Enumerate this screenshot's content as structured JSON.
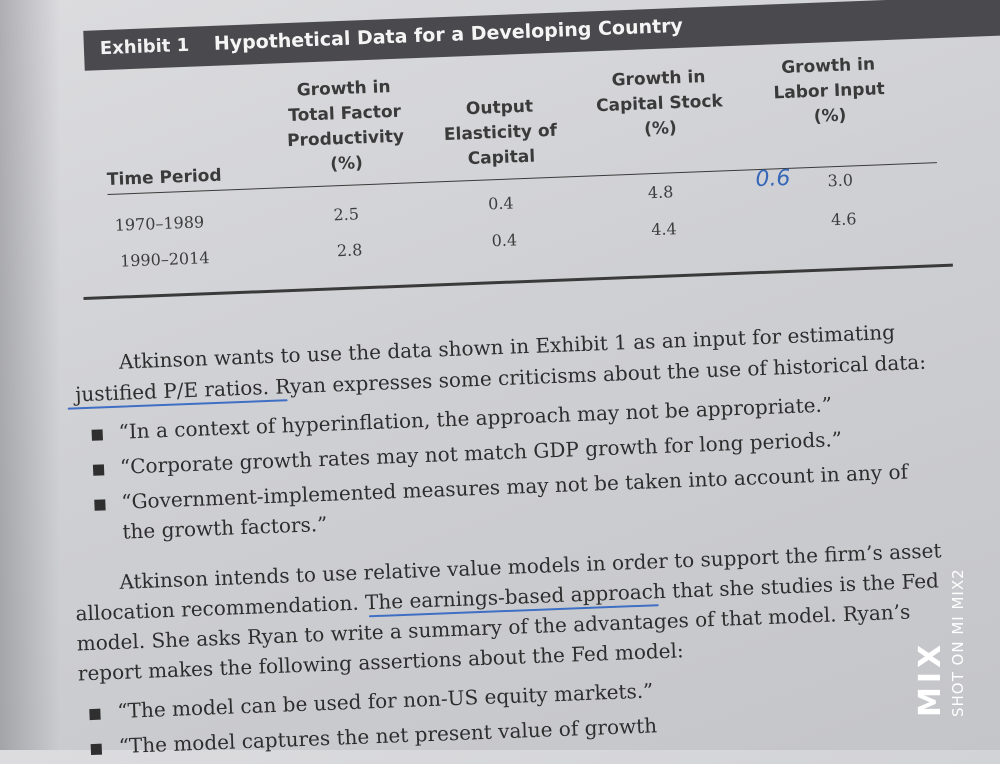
{
  "exhibit": {
    "label": "Exhibit 1",
    "title": "Hypothetical Data for a Developing Country"
  },
  "table": {
    "headers": {
      "time_period": "Time Period",
      "tfp": [
        "Growth in",
        "Total Factor",
        "Productivity",
        "(%)"
      ],
      "elasticity": [
        "Output",
        "Elasticity of",
        "Capital"
      ],
      "capital": [
        "Growth in",
        "Capital Stock",
        "(%)"
      ],
      "labor": [
        "Growth in",
        "Labor Input",
        "(%)"
      ]
    },
    "rows": [
      {
        "period": "1970–1989",
        "tfp": "2.5",
        "elasticity": "0.4",
        "capital": "4.8",
        "labor": "3.0"
      },
      {
        "period": "1990–2014",
        "tfp": "2.8",
        "elasticity": "0.4",
        "capital": "4.4",
        "labor": "4.6"
      }
    ],
    "handwritten_note": "0.6"
  },
  "text": {
    "p1_line1": "Atkinson wants to use the data shown in Exhibit 1 as an input for estimating",
    "p1_line2_underlined": "justified P/E ratios",
    "p1_line2_rest": ". Ryan expresses some criticisms about the use of historical data:",
    "bullets1": [
      "“In a context of hyperinflation, the approach may not be appropriate.”",
      "“Corporate growth rates may not match GDP growth for long periods.”",
      "“Government-implemented measures may not be taken into account in any of",
      "the growth factors.”"
    ],
    "p2_line1": "Atkinson intends to use relative value models in order to support the firm’s asset",
    "p2_line2_pre": "allocation recommendation. ",
    "p2_line2_underlined": "The earnings-based approach",
    "p2_line2_post": " that she studies is the Fed",
    "p2_line3": "model. She asks Ryan to write a summary of the advantages of that model. Ryan’s",
    "p2_line4": "report makes the following assertions about the Fed model:",
    "bullets2": [
      "“The model can be used for non-US equity markets.”",
      "“The model captures the net present value of growth"
    ]
  },
  "watermark": {
    "brand": "MIX",
    "caption": "SHOT ON MI MIX2"
  },
  "colors": {
    "header_bar": "#4a4a4e",
    "ink": "#3f6fc4",
    "paper": "#d2d3d7"
  }
}
